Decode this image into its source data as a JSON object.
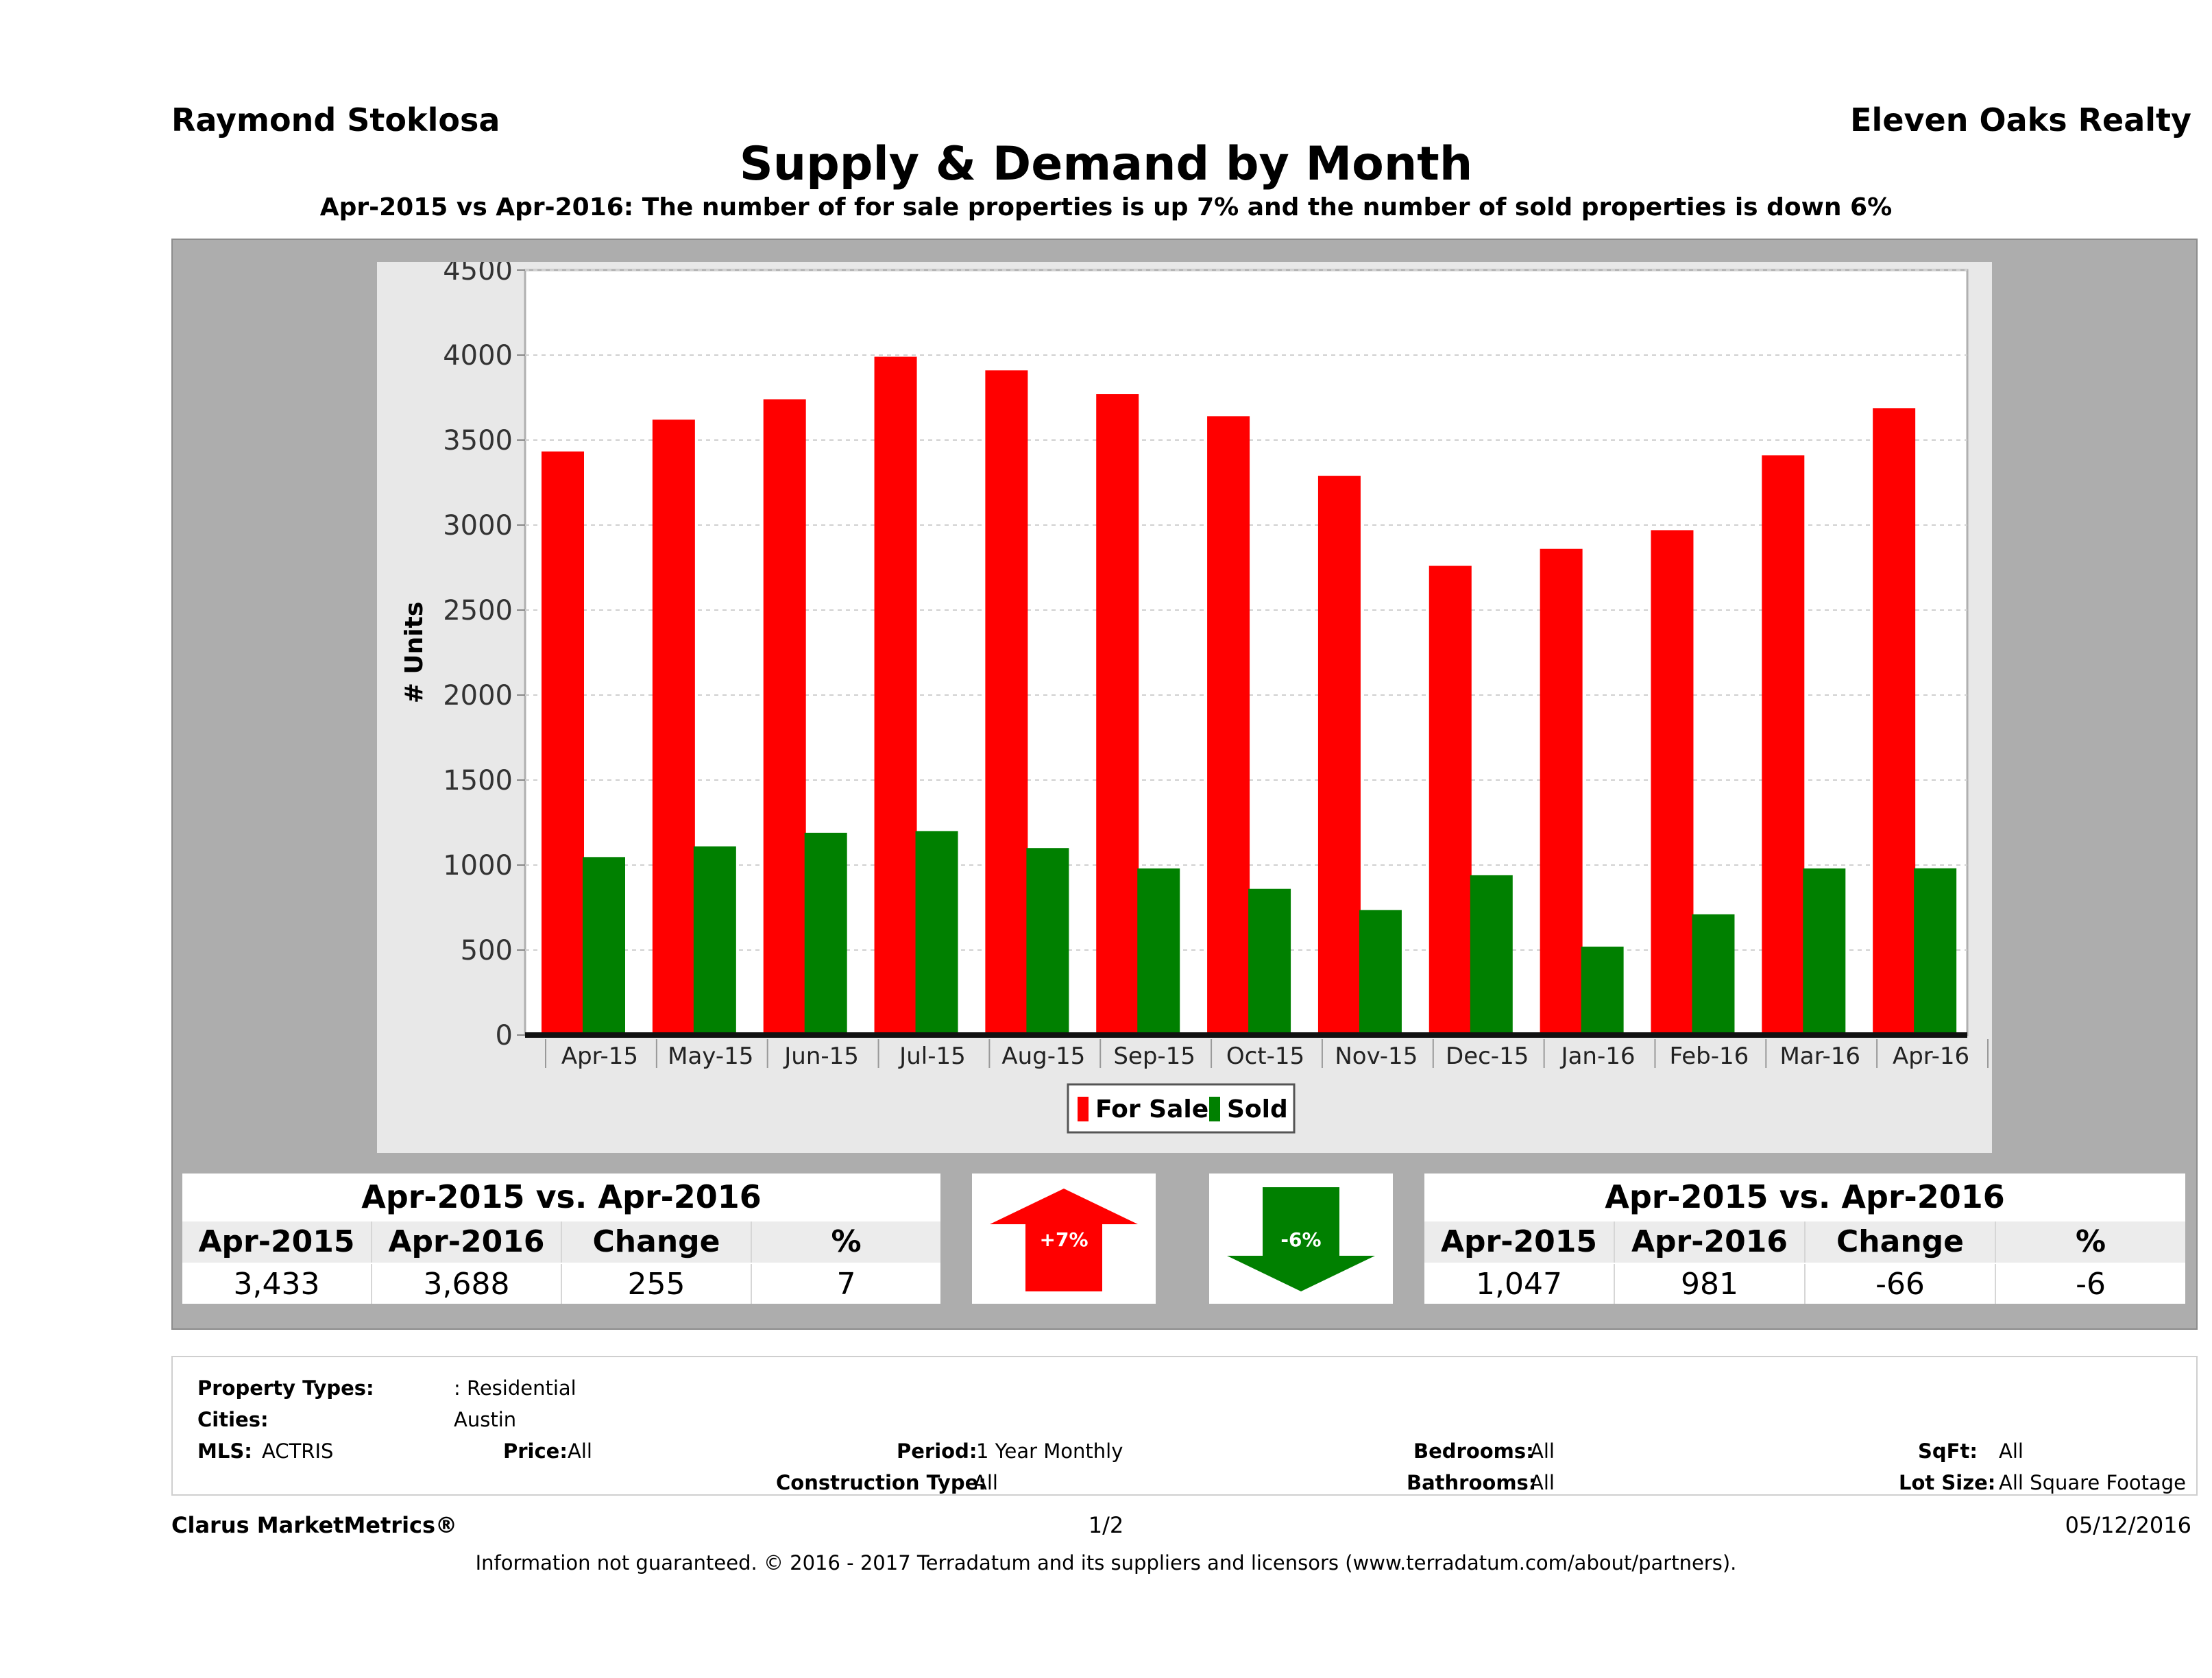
{
  "header": {
    "agent_name": "Raymond Stoklosa",
    "company": "Eleven Oaks Realty",
    "title": "Supply & Demand by Month",
    "subtitle": "Apr-2015 vs Apr-2016: The number of for sale properties is up 7% and the number of sold properties is down 6%"
  },
  "chart_data": {
    "type": "bar",
    "title": "Supply & Demand by Month",
    "xlabel": "",
    "ylabel": "# Units",
    "ylim": [
      0,
      4500
    ],
    "y_ticks": [
      "0",
      "500",
      "1000",
      "1500",
      "2000",
      "2500",
      "3000",
      "3500",
      "4000",
      "4500"
    ],
    "grid": true,
    "legend_position": "bottom-center",
    "categories": [
      "Apr-15",
      "May-15",
      "Jun-15",
      "Jul-15",
      "Aug-15",
      "Sep-15",
      "Oct-15",
      "Nov-15",
      "Dec-15",
      "Jan-16",
      "Feb-16",
      "Mar-16",
      "Apr-16"
    ],
    "series": [
      {
        "name": "For Sale",
        "color": "#ff0000",
        "values": [
          3433,
          3620,
          3740,
          3990,
          3910,
          3770,
          3640,
          3290,
          2760,
          2860,
          2970,
          3410,
          3688
        ]
      },
      {
        "name": "Sold",
        "color": "#008000",
        "values": [
          1047,
          1110,
          1190,
          1200,
          1100,
          980,
          860,
          735,
          940,
          520,
          710,
          980,
          981
        ]
      }
    ]
  },
  "for_sale_stats": {
    "title": "Apr-2015 vs. Apr-2016",
    "headers": [
      "Apr-2015",
      "Apr-2016",
      "Change",
      "%"
    ],
    "values": [
      "3,433",
      "3,688",
      "255",
      "7"
    ],
    "arrow_label": "+7%",
    "arrow_direction": "up",
    "arrow_color": "#ff0000"
  },
  "sold_stats": {
    "title": "Apr-2015 vs. Apr-2016",
    "headers": [
      "Apr-2015",
      "Apr-2016",
      "Change",
      "%"
    ],
    "values": [
      "1,047",
      "981",
      "-66",
      "-6"
    ],
    "arrow_label": "-6%",
    "arrow_direction": "down",
    "arrow_color": "#008000"
  },
  "criteria": {
    "property_types_label": "Property Types:",
    "property_types_value": ": Residential",
    "cities_label": "Cities:",
    "cities_value": "Austin",
    "mls_label": "MLS:",
    "mls_value": "ACTRIS",
    "price_label": "Price:",
    "price_value": "All",
    "period_label": "Period:",
    "period_value": "1 Year Monthly",
    "construction_label": "Construction Type:",
    "construction_value": "All",
    "bedrooms_label": "Bedrooms:",
    "bedrooms_value": "All",
    "bathrooms_label": "Bathrooms:",
    "bathrooms_value": "All",
    "sqft_label": "SqFt:",
    "sqft_value": "All",
    "lot_label": "Lot Size:",
    "lot_value": "All Square Footage"
  },
  "footer": {
    "brand": "Clarus MarketMetrics®",
    "page": "1/2",
    "date": "05/12/2016",
    "disclaimer": "Information not guaranteed. © 2016 - 2017 Terradatum and its suppliers and licensors (www.terradatum.com/about/partners)."
  }
}
